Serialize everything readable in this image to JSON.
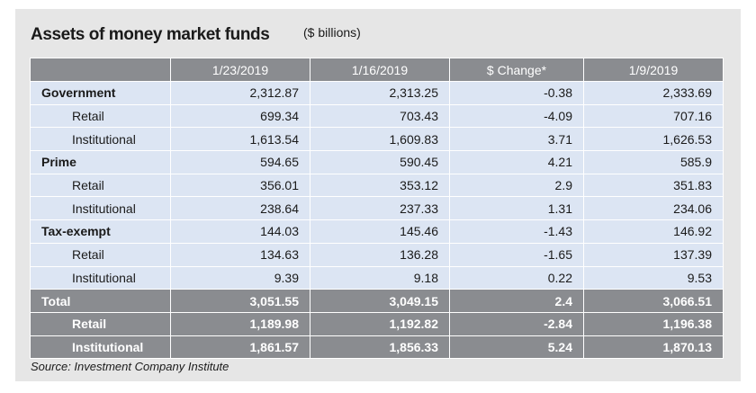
{
  "header": {
    "title": "Assets of money market funds",
    "units": "($ billions)"
  },
  "table": {
    "columns": [
      "",
      "1/23/2019",
      "1/16/2019",
      "$ Change*",
      "1/9/2019"
    ],
    "rows": [
      {
        "label": "Government",
        "level": "main",
        "values": [
          "2,312.87",
          "2,313.25",
          "-0.38",
          "2,333.69"
        ]
      },
      {
        "label": "Retail",
        "level": "sub",
        "values": [
          "699.34",
          "703.43",
          "-4.09",
          "707.16"
        ]
      },
      {
        "label": "Institutional",
        "level": "sub",
        "values": [
          "1,613.54",
          "1,609.83",
          "3.71",
          "1,626.53"
        ]
      },
      {
        "label": "Prime",
        "level": "main",
        "values": [
          "594.65",
          "590.45",
          "4.21",
          "585.9"
        ]
      },
      {
        "label": "Retail",
        "level": "sub",
        "values": [
          "356.01",
          "353.12",
          "2.9",
          "351.83"
        ]
      },
      {
        "label": "Institutional",
        "level": "sub",
        "values": [
          "238.64",
          "237.33",
          "1.31",
          "234.06"
        ]
      },
      {
        "label": "Tax-exempt",
        "level": "main",
        "values": [
          "144.03",
          "145.46",
          "-1.43",
          "146.92"
        ]
      },
      {
        "label": "Retail",
        "level": "sub",
        "values": [
          "134.63",
          "136.28",
          "-1.65",
          "137.39"
        ]
      },
      {
        "label": "Institutional",
        "level": "sub",
        "values": [
          "9.39",
          "9.18",
          "0.22",
          "9.53"
        ]
      }
    ],
    "total_rows": [
      {
        "label": "Total",
        "level": "main",
        "values": [
          "3,051.55",
          "3,049.15",
          "2.4",
          "3,066.51"
        ]
      },
      {
        "label": "Retail",
        "level": "sub",
        "values": [
          "1,189.98",
          "1,192.82",
          "-2.84",
          "1,196.38"
        ]
      },
      {
        "label": "Institutional",
        "level": "sub",
        "values": [
          "1,861.57",
          "1,856.33",
          "5.24",
          "1,870.13"
        ]
      }
    ]
  },
  "footer": {
    "source": "Source: Investment Company Institute"
  },
  "colors": {
    "header_bg": "#8a8c90",
    "row_bg": "#dce5f3",
    "panel_bg": "#e6e6e6"
  },
  "chart_data": {
    "type": "table",
    "title": "Assets of money market funds",
    "subtitle": "($ billions)",
    "columns": [
      "1/23/2019",
      "1/16/2019",
      "$ Change*",
      "1/9/2019"
    ],
    "rows": [
      {
        "category": "Government",
        "values": [
          2312.87,
          2313.25,
          -0.38,
          2333.69
        ]
      },
      {
        "category": "Government - Retail",
        "values": [
          699.34,
          703.43,
          -4.09,
          707.16
        ]
      },
      {
        "category": "Government - Institutional",
        "values": [
          1613.54,
          1609.83,
          3.71,
          1626.53
        ]
      },
      {
        "category": "Prime",
        "values": [
          594.65,
          590.45,
          4.21,
          585.9
        ]
      },
      {
        "category": "Prime - Retail",
        "values": [
          356.01,
          353.12,
          2.9,
          351.83
        ]
      },
      {
        "category": "Prime - Institutional",
        "values": [
          238.64,
          237.33,
          1.31,
          234.06
        ]
      },
      {
        "category": "Tax-exempt",
        "values": [
          144.03,
          145.46,
          -1.43,
          146.92
        ]
      },
      {
        "category": "Tax-exempt - Retail",
        "values": [
          134.63,
          136.28,
          -1.65,
          137.39
        ]
      },
      {
        "category": "Tax-exempt - Institutional",
        "values": [
          9.39,
          9.18,
          0.22,
          9.53
        ]
      },
      {
        "category": "Total",
        "values": [
          3051.55,
          3049.15,
          2.4,
          3066.51
        ]
      },
      {
        "category": "Total - Retail",
        "values": [
          1189.98,
          1192.82,
          -2.84,
          1196.38
        ]
      },
      {
        "category": "Total - Institutional",
        "values": [
          1861.57,
          1856.33,
          5.24,
          1870.13
        ]
      }
    ],
    "source": "Source: Investment Company Institute"
  }
}
